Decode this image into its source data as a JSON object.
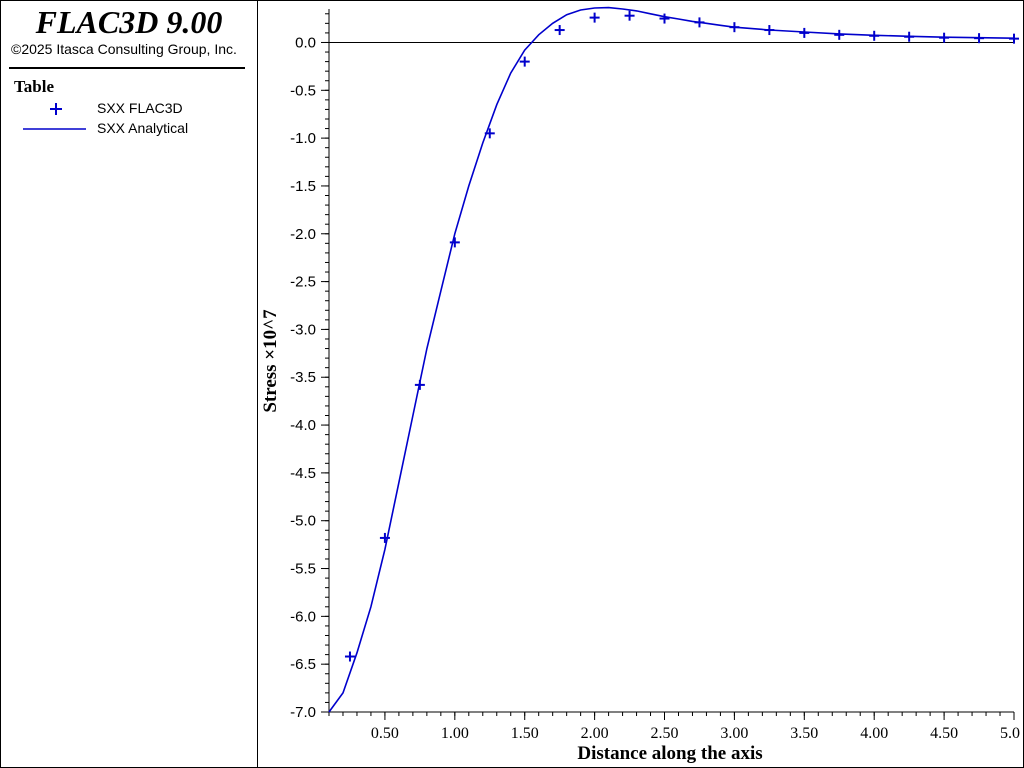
{
  "app": {
    "title": "FLAC3D 9.00",
    "copyright": "©2025 Itasca Consulting Group, Inc."
  },
  "legend": {
    "heading": "Table",
    "entries": [
      {
        "label": "SXX FLAC3D",
        "marker": "plus",
        "color": "#0000cc"
      },
      {
        "label": "SXX Analytical",
        "marker": "line",
        "color": "#0000cc"
      }
    ]
  },
  "colors": {
    "series": "#0000cc",
    "axis": "#000000",
    "background": "#ffffff"
  },
  "chart_data": {
    "type": "line",
    "xlabel": "Distance along the axis",
    "ylabel": "Stress ×10^7",
    "xlim": [
      0.1,
      5.0
    ],
    "ylim": [
      -7.0,
      0.35
    ],
    "xticks": [
      0.5,
      1.0,
      1.5,
      2.0,
      2.5,
      3.0,
      3.5,
      4.0,
      4.5,
      5.0
    ],
    "xtick_labels": [
      "0.50",
      "1.00",
      "1.50",
      "2.00",
      "2.50",
      "3.00",
      "3.50",
      "4.00",
      "4.50",
      "5.0"
    ],
    "yticks": [
      0.0,
      -0.5,
      -1.0,
      -1.5,
      -2.0,
      -2.5,
      -3.0,
      -3.5,
      -4.0,
      -4.5,
      -5.0,
      -5.5,
      -6.0,
      -6.5,
      -7.0
    ],
    "ytick_labels": [
      "0.0",
      "-0.5",
      "-1.0",
      "-1.5",
      "-2.0",
      "-2.5",
      "-3.0",
      "-3.5",
      "-4.0",
      "-4.5",
      "-5.0",
      "-5.5",
      "-6.0",
      "-6.5",
      "-7.0"
    ],
    "zero_line": true,
    "grid": false,
    "series": [
      {
        "name": "SXX FLAC3D",
        "style": "markers",
        "marker": "plus",
        "x": [
          0.25,
          0.5,
          0.75,
          1.0,
          1.25,
          1.5,
          1.75,
          2.0,
          2.25,
          2.5,
          2.75,
          3.0,
          3.25,
          3.5,
          3.75,
          4.0,
          4.25,
          4.5,
          4.75,
          5.0
        ],
        "y": [
          -6.42,
          -5.18,
          -3.58,
          -2.09,
          -0.95,
          -0.2,
          0.13,
          0.26,
          0.28,
          0.25,
          0.21,
          0.16,
          0.13,
          0.1,
          0.08,
          0.07,
          0.06,
          0.05,
          0.045,
          0.04
        ]
      },
      {
        "name": "SXX Analytical",
        "style": "line",
        "x": [
          0.1,
          0.2,
          0.3,
          0.4,
          0.5,
          0.6,
          0.7,
          0.8,
          0.9,
          1.0,
          1.1,
          1.2,
          1.3,
          1.4,
          1.5,
          1.55,
          1.6,
          1.7,
          1.8,
          1.9,
          2.0,
          2.1,
          2.2,
          2.3,
          2.4,
          2.5,
          2.6,
          2.7,
          2.8,
          2.9,
          3.0,
          3.25,
          3.5,
          3.75,
          4.0,
          4.25,
          4.5,
          4.75,
          5.0
        ],
        "y": [
          -7.0,
          -6.8,
          -6.38,
          -5.9,
          -5.3,
          -4.6,
          -3.9,
          -3.2,
          -2.6,
          -2.0,
          -1.5,
          -1.05,
          -0.65,
          -0.32,
          -0.08,
          0.0,
          0.08,
          0.2,
          0.29,
          0.34,
          0.36,
          0.365,
          0.35,
          0.33,
          0.3,
          0.27,
          0.245,
          0.22,
          0.2,
          0.18,
          0.16,
          0.13,
          0.11,
          0.09,
          0.075,
          0.065,
          0.055,
          0.05,
          0.045
        ]
      }
    ]
  }
}
